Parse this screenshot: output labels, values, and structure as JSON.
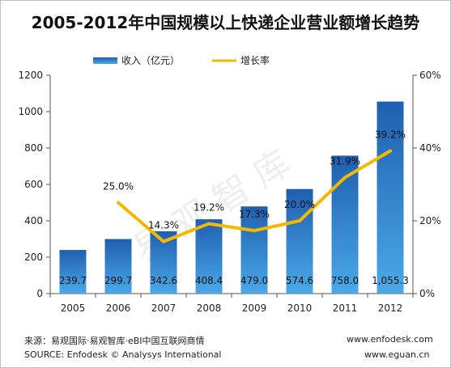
{
  "chart_data": {
    "type": "bar",
    "title": "2005-2012年中国规模以上快递企业营业额增长趋势",
    "categories": [
      "2005",
      "2006",
      "2007",
      "2008",
      "2009",
      "2010",
      "2011",
      "2012"
    ],
    "series": [
      {
        "name": "收入（亿元）",
        "type": "bar",
        "axis": "left",
        "values": [
          239.7,
          299.7,
          342.6,
          408.4,
          479.0,
          574.6,
          758.0,
          1055.3
        ],
        "labels": [
          "239.7",
          "299.7",
          "342.6",
          "408.4",
          "479.0",
          "574.6",
          "758.0",
          "1,055.3"
        ]
      },
      {
        "name": "增长率",
        "type": "line",
        "axis": "right",
        "values": [
          null,
          25.0,
          14.3,
          19.2,
          17.3,
          20.0,
          31.9,
          39.2
        ],
        "labels": [
          "",
          "25.0%",
          "14.3%",
          "19.2%",
          "17.3%",
          "20.0%",
          "31.9%",
          "39.2%"
        ]
      }
    ],
    "y_left": {
      "ylim": [
        0,
        1200
      ],
      "ticks": [
        "0",
        "200",
        "400",
        "600",
        "800",
        "1000",
        "1200"
      ]
    },
    "y_right": {
      "ylim": [
        0,
        60
      ],
      "ticks": [
        "0%",
        "20%",
        "40%",
        "60%"
      ]
    },
    "colors": {
      "bar_top": "#1f5fb0",
      "bar_bottom": "#4aa9e8",
      "line": "#f5b800"
    },
    "legend_position": "top",
    "grid": false
  },
  "footer": {
    "source_cn": "来源：易观国际·易观智库·eBI中国互联网商情",
    "source_en": "SOURCE: Enfodesk © Analysys International",
    "url1": "www.enfodesk.com",
    "url2": "www.eguan.cn"
  },
  "watermark": "易 观 智 库"
}
